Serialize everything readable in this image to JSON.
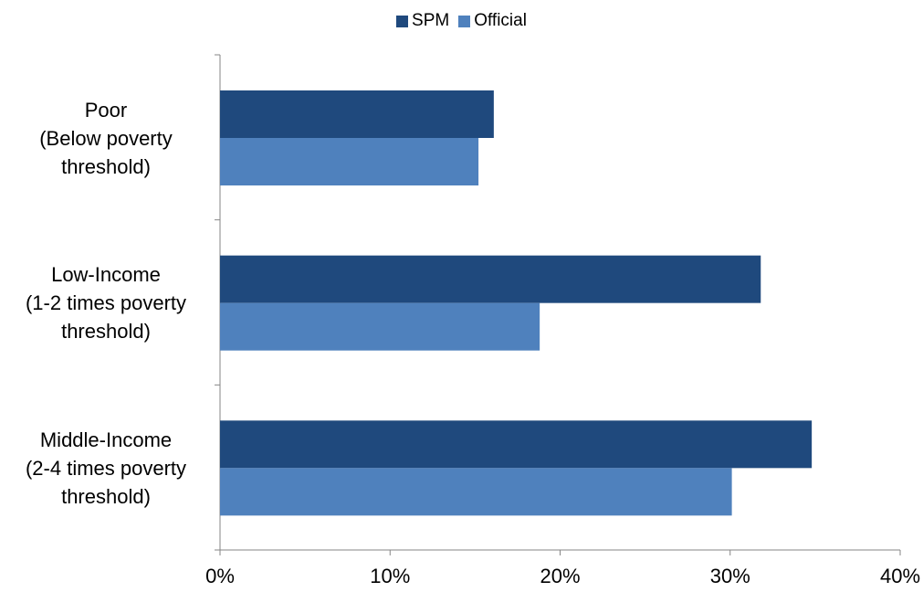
{
  "chart_data": {
    "type": "bar",
    "orientation": "horizontal",
    "title": "",
    "xlabel": "",
    "ylabel": "",
    "categories": [
      [
        "Poor",
        "(Below poverty",
        "threshold)"
      ],
      [
        "Low-Income",
        "(1-2 times poverty",
        "threshold)"
      ],
      [
        "Middle-Income",
        "(2-4 times poverty",
        "threshold)"
      ]
    ],
    "series": [
      {
        "name": "SPM",
        "color": "#1F497D",
        "values": [
          16.1,
          31.8,
          34.8
        ]
      },
      {
        "name": "Official",
        "color": "#4F81BD",
        "values": [
          15.2,
          18.8,
          30.1
        ]
      }
    ],
    "xlim": [
      0,
      40
    ],
    "xticks": [
      0,
      10,
      20,
      30,
      40
    ],
    "xtick_labels": [
      "0%",
      "10%",
      "20%",
      "30%",
      "40%"
    ],
    "grid": false,
    "legend_position": "top-center"
  }
}
